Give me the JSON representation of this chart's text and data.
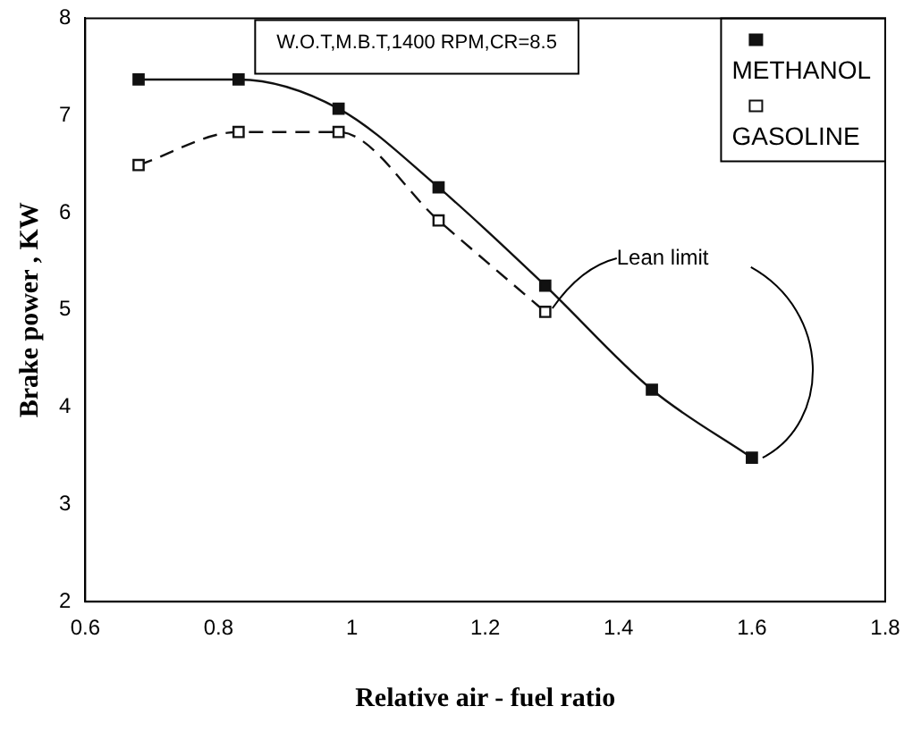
{
  "chart_data": {
    "type": "line",
    "xlabel": "Relative air - fuel ratio",
    "ylabel": "Brake power , KW",
    "annotations": [
      "W.O.T,M.B.T,1400 RPM,CR=8.5",
      {
        "text": "Lean limit",
        "x": 1.29,
        "y": 4.98
      }
    ],
    "xlim": [
      0.6,
      1.8
    ],
    "xticks": [
      0.6,
      0.8,
      1,
      1.2,
      1.4,
      1.6,
      1.8
    ],
    "ylim": [
      2,
      8
    ],
    "yticks": [
      2,
      3,
      4,
      5,
      6,
      7,
      8
    ],
    "grid": false,
    "legend": "top right",
    "marker": "square",
    "series": [
      {
        "name": "METHANOL",
        "color": "#111111",
        "line_style": "solid",
        "x": [
          0.68,
          0.83,
          0.98,
          1.13,
          1.29,
          1.45,
          1.6
        ],
        "values": [
          7.37,
          7.37,
          7.07,
          6.26,
          5.25,
          4.18,
          3.48
        ]
      },
      {
        "name": "GASOLINE",
        "color": "#111111",
        "line_style": "dashed",
        "x": [
          0.68,
          0.83,
          0.98,
          1.13,
          1.29
        ],
        "values": [
          6.49,
          6.83,
          6.83,
          5.92,
          4.98
        ]
      }
    ]
  }
}
